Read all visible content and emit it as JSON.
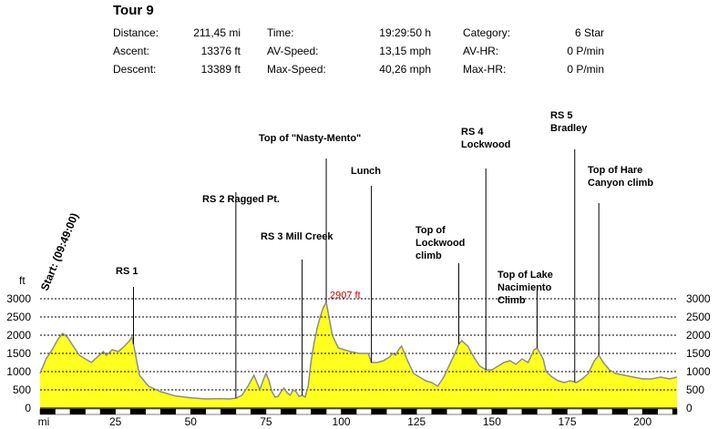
{
  "header": {
    "title": "Tour 9",
    "stats": [
      {
        "label": "Distance:",
        "value": "211,45 mi"
      },
      {
        "label": "Ascent:",
        "value": "13376 ft"
      },
      {
        "label": "Descent:",
        "value": "13389 ft"
      },
      {
        "label": "Time:",
        "value": "19:29:50 h"
      },
      {
        "label": "AV-Speed:",
        "value": "13,15 mph"
      },
      {
        "label": "Max-Speed:",
        "value": "40,26 mph"
      },
      {
        "label": "Category:",
        "value": "6 Star"
      },
      {
        "label": "AV-HR:",
        "value": "0 P/min"
      },
      {
        "label": "Max-HR:",
        "value": "0 P/min"
      }
    ]
  },
  "chart_data": {
    "type": "area",
    "xlabel": "mi",
    "ylabel": "ft",
    "xlim": [
      0,
      211.45
    ],
    "ylim": [
      0,
      3000
    ],
    "x_ticks": [
      25,
      50,
      75,
      100,
      125,
      150,
      175,
      200
    ],
    "y_ticks": [
      0,
      500,
      1000,
      1500,
      2000,
      2500,
      3000
    ],
    "grid": "horizontal dashed",
    "max_label": "2907 ft",
    "colors": {
      "fill": "#ffff20",
      "line": "#8c8c8c",
      "marker": "#000000",
      "max_label": "#cc0000"
    },
    "series": [
      {
        "x": [
          0,
          2,
          4,
          6,
          7.5,
          9,
          11,
          13,
          15,
          17,
          19,
          21,
          22,
          24,
          26,
          28,
          29.7,
          30.5,
          31.5,
          33,
          36,
          40,
          45,
          50,
          55,
          60,
          63,
          65,
          67,
          69,
          71,
          72,
          73,
          74,
          75,
          76,
          77,
          78,
          79,
          80,
          81,
          82,
          83,
          84,
          85,
          86,
          87,
          88,
          89,
          90,
          91,
          92,
          93,
          94,
          95,
          96,
          97,
          99,
          101,
          103,
          106,
          109,
          110,
          112,
          114,
          116,
          117,
          118,
          119,
          120,
          122,
          124,
          126,
          128,
          130,
          132,
          134,
          136,
          138,
          139,
          140,
          142,
          144,
          146,
          148,
          150,
          152,
          154,
          156,
          158,
          160,
          162,
          164,
          165,
          166,
          167,
          168,
          170,
          172,
          174,
          176,
          178,
          180,
          182,
          184,
          185.5,
          187,
          189,
          191,
          194,
          197,
          200,
          203,
          206,
          209,
          211.45
        ],
        "y": [
          950,
          1350,
          1600,
          1900,
          2050,
          1950,
          1700,
          1450,
          1350,
          1250,
          1400,
          1550,
          1450,
          1600,
          1550,
          1700,
          1850,
          1950,
          1550,
          900,
          600,
          450,
          330,
          280,
          250,
          260,
          250,
          270,
          350,
          600,
          900,
          700,
          500,
          750,
          950,
          750,
          450,
          300,
          320,
          450,
          550,
          420,
          350,
          500,
          450,
          320,
          350,
          300,
          600,
          1300,
          1800,
          2200,
          2500,
          2750,
          2907,
          2450,
          2000,
          1650,
          1600,
          1550,
          1500,
          1500,
          1250,
          1250,
          1300,
          1400,
          1500,
          1450,
          1600,
          1700,
          1300,
          950,
          850,
          750,
          700,
          600,
          850,
          1200,
          1550,
          1750,
          1850,
          1700,
          1400,
          1150,
          1050,
          1050,
          1150,
          1250,
          1300,
          1200,
          1350,
          1250,
          1600,
          1650,
          1500,
          1350,
          1000,
          850,
          750,
          700,
          750,
          700,
          800,
          950,
          1300,
          1450,
          1250,
          1050,
          950,
          900,
          850,
          800,
          800,
          850,
          800,
          850
        ]
      }
    ],
    "annotations": [
      {
        "x": 0,
        "lines": [
          "Start: (09:49:00)"
        ],
        "rotated": true
      },
      {
        "x": 31,
        "lines": [
          "RS 1"
        ]
      },
      {
        "x": 65,
        "lines": [
          "RS 2 Ragged Pt."
        ]
      },
      {
        "x": 87,
        "lines": [
          "RS 3 Mill Creek"
        ]
      },
      {
        "x": 95,
        "lines": [
          "Top of \"Nasty-Mento\""
        ]
      },
      {
        "x": 110,
        "lines": [
          "Lunch"
        ]
      },
      {
        "x": 139,
        "lines": [
          "Top of",
          "Lockwood",
          "climb"
        ]
      },
      {
        "x": 148,
        "lines": [
          "RS 4",
          "Lockwood"
        ]
      },
      {
        "x": 165,
        "lines": [
          "Top of Lake",
          "Nacimiento",
          "Climb"
        ]
      },
      {
        "x": 177.5,
        "lines": [
          "RS 5",
          "Bradley"
        ]
      },
      {
        "x": 185.5,
        "lines": [
          "Top of Hare",
          "Canyon climb"
        ]
      }
    ]
  }
}
